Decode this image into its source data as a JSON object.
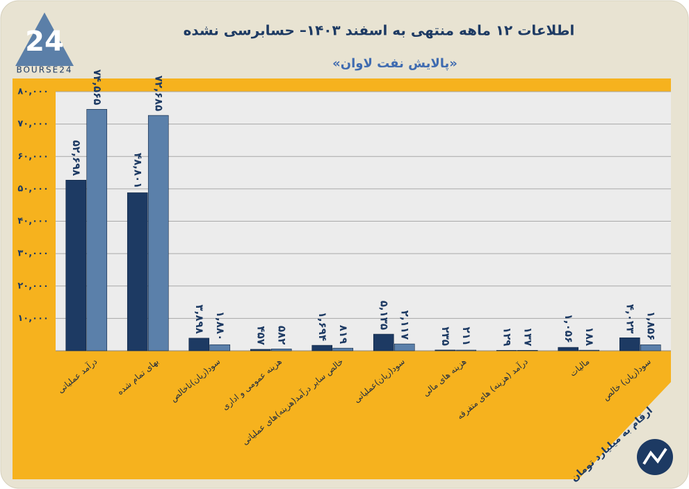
{
  "chart_data": {
    "type": "bar",
    "title": "اطلاعات ۱۲ ماهه منتهی به اسفند ۱۴۰۳– حسابرسی نشده",
    "subtitle": "«پالایش نفت لاوان»",
    "note": "ارقام به میلیارد تومان",
    "logo_text": "BOURSE24",
    "logo_mark": "24",
    "categories": [
      "درآمد عملیاتی",
      "بهای تمام شده",
      "سود(زیان)ناخالص",
      "هزینه عمومی و اداری",
      "خالص سایر درآمد(هزینه)های عملیاتی",
      "سود(زیان)عملیاتی",
      "هزینه های مالی",
      "درآمد (هزینه) های متفرقه",
      "مالیات",
      "سود(زیان) خالص"
    ],
    "series": [
      {
        "color": "#1d3a63",
        "values": [
          52698,
          48801,
          3898,
          457,
          1694,
          5135,
          235,
          129,
          1056,
          4023
        ],
        "value_labels": [
          "۵۲,۶۹۸",
          "۴۸,۸۰۱",
          "۳,۸۹۸",
          "۴۵۷",
          "۱,۶۹۴",
          "۵,۱۳۵",
          "۲۳۵",
          "۱۲۹",
          "۱,۰۵۶",
          "۴,۰۲۳"
        ]
      },
      {
        "color": "#5b80aa",
        "values": [
          74565,
          72685,
          1880,
          582,
          819,
          2117,
          211,
          137,
          188,
          1856
        ],
        "value_labels": [
          "۷۴,۵۶۵",
          "۷۲,۶۸۵",
          "۱,۸۸۰",
          "۵۸۲",
          "۸۱۹",
          "۲,۱۱۷",
          "۲۱۱",
          "۱۳۷",
          "۱۸۸",
          "۱,۸۵۶"
        ]
      }
    ],
    "ylim": [
      0,
      80000
    ],
    "yticks": [
      {
        "value": 10000,
        "label": "۱۰,۰۰۰"
      },
      {
        "value": 20000,
        "label": "۲۰,۰۰۰"
      },
      {
        "value": 30000,
        "label": "۳۰,۰۰۰"
      },
      {
        "value": 40000,
        "label": "۴۰,۰۰۰"
      },
      {
        "value": 50000,
        "label": "۵۰,۰۰۰"
      },
      {
        "value": 60000,
        "label": "۶۰,۰۰۰"
      },
      {
        "value": 70000,
        "label": "۷۰,۰۰۰"
      },
      {
        "value": 80000,
        "label": "۸۰,۰۰۰"
      }
    ],
    "grid": true
  }
}
